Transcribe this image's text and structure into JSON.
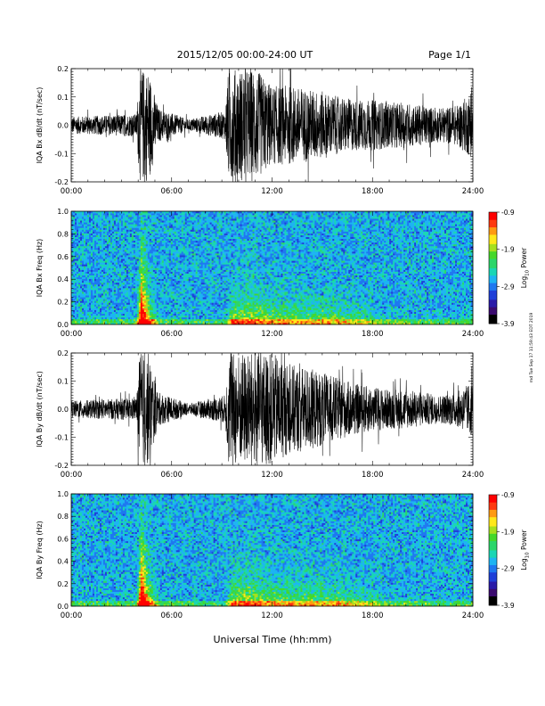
{
  "header": {
    "title": "2015/12/05  00:00-24:00 UT",
    "page": "Page 1/1"
  },
  "footer": {
    "xlabel": "Universal Time (hh:mm)"
  },
  "side_note": "rnd Tue Sep 17 11:59:43 EDT 2019",
  "colorbar": {
    "label": "Log10 Power",
    "label_main": "Log",
    "label_sub": "10",
    "label_tail": " Power",
    "ticks": [
      "-0.9",
      "-1.9",
      "-2.9",
      "-3.9"
    ],
    "colors": [
      "#000000",
      "#3a0a6e",
      "#2a1aa8",
      "#1f3fd8",
      "#1e78f0",
      "#1db4f2",
      "#19d6b4",
      "#2bd66a",
      "#45d82a",
      "#a6e01e",
      "#ffe81a",
      "#ff9a12",
      "#ff3a10",
      "#ff0000"
    ]
  },
  "chart_data": [
    {
      "type": "line",
      "ylabel": "IQA Bx dB/dt (nT/sec)",
      "xticks": [
        "00:00",
        "06:00",
        "12:00",
        "18:00",
        "24:00"
      ],
      "yticks": [
        "0.2",
        "0.1",
        "0.0",
        "-0.1",
        "-0.2"
      ],
      "xlim": [
        0,
        24
      ],
      "ylim": [
        -0.2,
        0.2
      ],
      "x_unit": "hours UT",
      "amplitude_envelope": {
        "x": [
          0,
          2,
          3.9,
          4.1,
          4.6,
          5.2,
          7,
          9.2,
          9.4,
          10,
          11,
          12,
          13,
          14,
          15,
          16,
          17,
          18,
          19,
          20,
          21,
          22,
          23,
          24
        ],
        "values": [
          0.03,
          0.035,
          0.04,
          0.2,
          0.2,
          0.06,
          0.02,
          0.05,
          0.2,
          0.2,
          0.2,
          0.14,
          0.14,
          0.13,
          0.12,
          0.1,
          0.09,
          0.09,
          0.08,
          0.08,
          0.07,
          0.06,
          0.07,
          0.12
        ]
      }
    },
    {
      "type": "heatmap",
      "ylabel": "IQA Bx Freq (Hz)",
      "xticks": [
        "00:00",
        "06:00",
        "12:00",
        "18:00",
        "24:00"
      ],
      "yticks": [
        "1.0",
        "0.8",
        "0.6",
        "0.4",
        "0.2",
        "0.0"
      ],
      "xlim": [
        0,
        24
      ],
      "ylim": [
        0,
        1
      ],
      "zlim": [
        -3.9,
        -0.9
      ],
      "activity_envelope": {
        "x": [
          0,
          2,
          3.9,
          4.2,
          4.7,
          5.3,
          8,
          9.2,
          9.6,
          10.5,
          12,
          14,
          16,
          17.5,
          19,
          21,
          23,
          24
        ],
        "values": [
          0.06,
          0.05,
          0.1,
          0.9,
          0.4,
          0.1,
          0.04,
          0.05,
          0.35,
          0.4,
          0.32,
          0.3,
          0.28,
          0.22,
          0.12,
          0.08,
          0.08,
          0.12
        ]
      }
    },
    {
      "type": "line",
      "ylabel": "IQA By dB/dt (nT/sec)",
      "xticks": [
        "00:00",
        "06:00",
        "12:00",
        "18:00",
        "24:00"
      ],
      "yticks": [
        "0.2",
        "0.1",
        "0.0",
        "-0.1",
        "-0.2"
      ],
      "xlim": [
        0,
        24
      ],
      "ylim": [
        -0.2,
        0.2
      ],
      "x_unit": "hours UT",
      "amplitude_envelope": {
        "x": [
          0,
          2,
          3.9,
          4.1,
          4.6,
          5.2,
          7,
          9.2,
          9.4,
          10,
          11,
          12,
          13,
          14,
          15,
          16,
          17,
          18,
          19,
          20,
          21,
          22,
          23,
          24
        ],
        "values": [
          0.03,
          0.035,
          0.04,
          0.2,
          0.2,
          0.06,
          0.02,
          0.05,
          0.2,
          0.2,
          0.2,
          0.2,
          0.16,
          0.15,
          0.13,
          0.11,
          0.09,
          0.08,
          0.07,
          0.07,
          0.06,
          0.05,
          0.06,
          0.1
        ]
      }
    },
    {
      "type": "heatmap",
      "ylabel": "IQA By Freq (Hz)",
      "xticks": [
        "00:00",
        "06:00",
        "12:00",
        "18:00",
        "24:00"
      ],
      "yticks": [
        "1.0",
        "0.8",
        "0.6",
        "0.4",
        "0.2",
        "0.0"
      ],
      "xlim": [
        0,
        24
      ],
      "ylim": [
        0,
        1
      ],
      "zlim": [
        -3.9,
        -0.9
      ],
      "activity_envelope": {
        "x": [
          0,
          2,
          3.9,
          4.2,
          4.7,
          5.3,
          8,
          9.2,
          9.6,
          10.5,
          12,
          14,
          16,
          17.5,
          19,
          21,
          23,
          24
        ],
        "values": [
          0.06,
          0.05,
          0.1,
          0.9,
          0.4,
          0.1,
          0.04,
          0.05,
          0.35,
          0.4,
          0.32,
          0.3,
          0.28,
          0.22,
          0.12,
          0.08,
          0.08,
          0.12
        ]
      }
    }
  ]
}
